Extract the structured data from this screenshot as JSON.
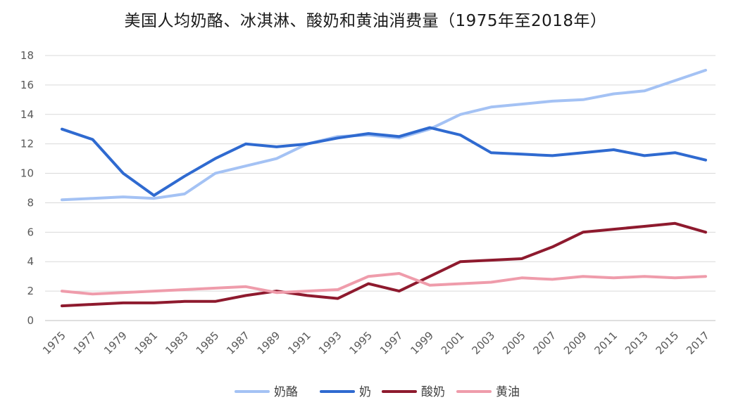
{
  "chart_data": {
    "type": "line",
    "title": "美国人均奶酪、冰淇淋、酸奶和黄油消费量（1975年至2018年）",
    "xlabel": "",
    "ylabel": "",
    "ylim": [
      0,
      18
    ],
    "yticks": [
      0,
      2,
      4,
      6,
      8,
      10,
      12,
      14,
      16,
      18
    ],
    "x": [
      1975,
      1977,
      1979,
      1981,
      1983,
      1985,
      1987,
      1989,
      1991,
      1993,
      1995,
      1997,
      1999,
      2001,
      2003,
      2005,
      2007,
      2009,
      2011,
      2013,
      2015,
      2017
    ],
    "x_tick_labels": [
      "1975",
      "1977",
      "1979",
      "1981",
      "1983",
      "1985",
      "1987",
      "1989",
      "1991",
      "1993",
      "1995",
      "1997",
      "1999",
      "2001",
      "2003",
      "2005",
      "2007",
      "2009",
      "2011",
      "2013",
      "2015",
      "2017"
    ],
    "grid": "horizontal",
    "legend_position": "bottom",
    "series": [
      {
        "name": "奶酪",
        "color": "#a4c2f4",
        "values": [
          8.2,
          8.3,
          8.4,
          8.3,
          8.6,
          10.0,
          10.5,
          11.0,
          12.0,
          12.5,
          12.6,
          12.4,
          13.0,
          14.0,
          14.5,
          14.7,
          14.9,
          15.0,
          15.4,
          15.6,
          16.3,
          17.0
        ]
      },
      {
        "name": "奶",
        "color": "#2f6ad0",
        "values": [
          13.0,
          12.3,
          10.0,
          8.5,
          9.8,
          11.0,
          12.0,
          11.8,
          12.0,
          12.4,
          12.7,
          12.5,
          13.1,
          12.6,
          11.4,
          11.3,
          11.2,
          11.4,
          11.6,
          11.2,
          11.4,
          10.9
        ]
      },
      {
        "name": "酸奶",
        "color": "#8e1a2e",
        "values": [
          1.0,
          1.1,
          1.2,
          1.2,
          1.3,
          1.3,
          1.7,
          2.0,
          1.7,
          1.5,
          2.5,
          2.0,
          3.0,
          4.0,
          4.1,
          4.2,
          5.0,
          6.0,
          6.2,
          6.4,
          6.6,
          6.0
        ]
      },
      {
        "name": "黄油",
        "color": "#ef9cab",
        "values": [
          2.0,
          1.8,
          1.9,
          2.0,
          2.1,
          2.2,
          2.3,
          1.9,
          2.0,
          2.1,
          3.0,
          3.2,
          2.4,
          2.5,
          2.6,
          2.9,
          2.8,
          3.0,
          2.9,
          3.0,
          2.9,
          3.0
        ]
      }
    ]
  }
}
